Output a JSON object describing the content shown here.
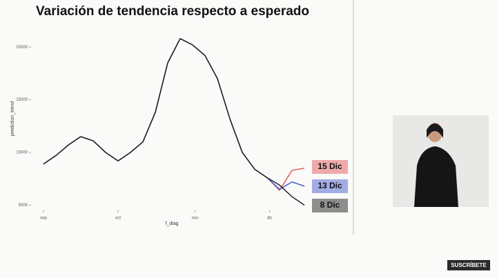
{
  "chart_data": {
    "type": "line",
    "title": "Variación de tendencia respecto a esperado",
    "x_label": "f_diag",
    "y_label": "prediction_trend",
    "x": [
      0,
      5,
      10,
      15,
      20,
      25,
      30,
      35,
      40,
      45,
      50,
      55,
      60,
      65,
      70,
      75,
      80,
      85,
      90,
      95,
      100,
      105
    ],
    "series": [
      {
        "name": "15 Dic",
        "color": "#e05a5a",
        "values": [
          8900,
          9700,
          10700,
          11500,
          11100,
          10000,
          9200,
          10000,
          11000,
          13800,
          18500,
          20800,
          20200,
          19200,
          17000,
          13200,
          10000,
          8400,
          7600,
          6400,
          8300,
          8500
        ]
      },
      {
        "name": "13 Dic",
        "color": "#4a5ed0",
        "values": [
          8900,
          9700,
          10700,
          11500,
          11100,
          10000,
          9200,
          10000,
          11000,
          13800,
          18500,
          20800,
          20200,
          19200,
          17000,
          13200,
          10000,
          8400,
          7600,
          6500,
          7200,
          6800
        ]
      },
      {
        "name": "8 Dic",
        "color": "#222222",
        "values": [
          8900,
          9700,
          10700,
          11500,
          11100,
          10000,
          9200,
          10000,
          11000,
          13800,
          18500,
          20800,
          20200,
          19200,
          17000,
          13200,
          10000,
          8400,
          7600,
          6900,
          5800,
          5000
        ]
      }
    ],
    "xlim": [
      -5,
      110
    ],
    "xticks": [
      {
        "value": 0,
        "label": "sep"
      },
      {
        "value": 30,
        "label": "oct"
      },
      {
        "value": 61,
        "label": "nov"
      },
      {
        "value": 91,
        "label": "dic"
      }
    ],
    "ylim": [
      4500,
      22500
    ],
    "yticks": [
      5000,
      10000,
      15000,
      20000
    ]
  },
  "subscribe_label": "SUSCRÍBETE"
}
